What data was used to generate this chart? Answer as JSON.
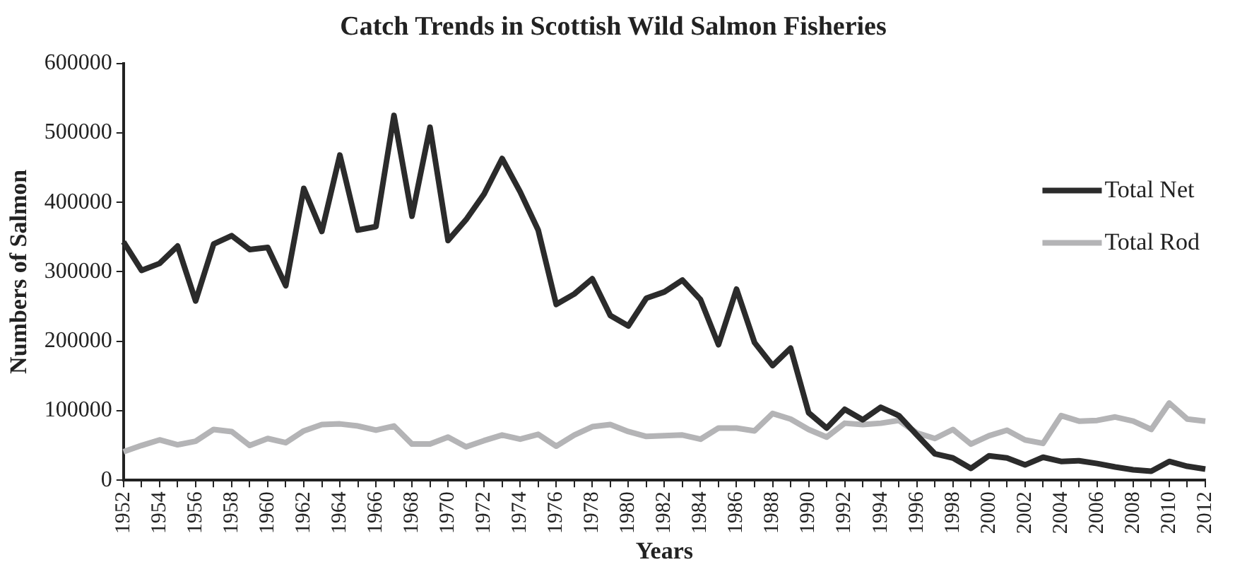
{
  "chart_data": {
    "type": "line",
    "title": "Catch Trends in Scottish Wild Salmon Fisheries",
    "xlabel": "Years",
    "ylabel": "Numbers of Salmon",
    "categories": [
      "1952",
      null,
      "1954",
      null,
      "1956",
      null,
      "1958",
      null,
      "1960",
      null,
      "1962",
      null,
      "1964",
      null,
      "1966",
      null,
      "1968",
      null,
      "1970",
      null,
      "1972",
      null,
      "1974",
      null,
      "1976",
      null,
      "1978",
      null,
      "1980",
      null,
      "1982",
      null,
      "1984",
      null,
      "1986",
      null,
      "1988",
      null,
      "1990",
      null,
      "1992",
      null,
      "1994",
      null,
      "1996",
      null,
      "1998",
      null,
      "2000",
      null,
      "2002",
      null,
      "2004",
      null,
      "2006",
      null,
      "2008",
      null,
      "2010",
      null,
      "2012"
    ],
    "series": [
      {
        "name": "Total Net",
        "color": "#2b2b2b",
        "values": [
          343000,
          302000,
          312000,
          337000,
          258000,
          340000,
          352000,
          332000,
          335000,
          280000,
          420000,
          358000,
          468000,
          360000,
          365000,
          525000,
          380000,
          508000,
          345000,
          375000,
          412000,
          463000,
          415000,
          360000,
          253000,
          268000,
          290000,
          237000,
          222000,
          262000,
          271000,
          288000,
          260000,
          195000,
          275000,
          198000,
          165000,
          190000,
          97000,
          75000,
          102000,
          87000,
          105000,
          93000,
          65000,
          38000,
          32000,
          17000,
          35000,
          32000,
          22000,
          33000,
          27000,
          28000,
          24000,
          19000,
          15000,
          13000,
          27000,
          20000,
          16000
        ]
      },
      {
        "name": "Total Rod",
        "color": "#b4b4b6",
        "values": [
          41000,
          50000,
          58000,
          51000,
          56000,
          73000,
          70000,
          50000,
          60000,
          54000,
          71000,
          80000,
          81000,
          78000,
          72000,
          78000,
          52000,
          52000,
          62000,
          48000,
          57000,
          65000,
          59000,
          66000,
          49000,
          65000,
          77000,
          80000,
          70000,
          63000,
          64000,
          65000,
          59000,
          75000,
          75000,
          71000,
          96000,
          88000,
          73000,
          62000,
          82000,
          80000,
          82000,
          86000,
          68000,
          60000,
          73000,
          52000,
          64000,
          72000,
          58000,
          53000,
          93000,
          85000,
          86000,
          91000,
          85000,
          73000,
          111000,
          88000,
          85000
        ]
      }
    ],
    "ylim": [
      0,
      600000
    ],
    "yticks": [
      0,
      100000,
      200000,
      300000,
      400000,
      500000,
      600000
    ],
    "grid": false,
    "legend": "top right",
    "marker": "none",
    "line_style": "solid"
  }
}
